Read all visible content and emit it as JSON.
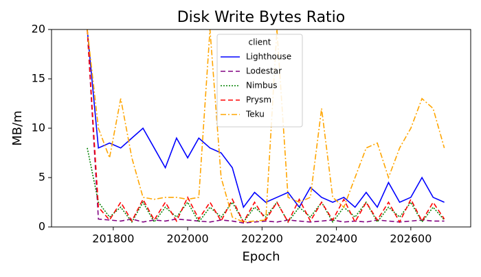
{
  "chart_data": {
    "type": "line",
    "title": "Disk Write Bytes Ratio",
    "x_label": "Epoch",
    "y_label": "MB/m",
    "legend_title": "client",
    "legend": "upper center",
    "x": [
      201730,
      201760,
      201790,
      201820,
      201850,
      201880,
      201910,
      201940,
      201970,
      202000,
      202030,
      202060,
      202090,
      202120,
      202150,
      202180,
      202210,
      202240,
      202270,
      202300,
      202330,
      202360,
      202390,
      202420,
      202450,
      202480,
      202510,
      202540,
      202570,
      202600,
      202630,
      202660,
      202690
    ],
    "series": [
      {
        "name": "Lighthouse",
        "color": "#0000ff",
        "style": "solid",
        "values": [
          20,
          8,
          8.5,
          8,
          9,
          10,
          8,
          6,
          9,
          7,
          9,
          8,
          7.5,
          6,
          2,
          3.5,
          2.5,
          3,
          3.5,
          2,
          4,
          3,
          2.5,
          3,
          2,
          3.5,
          2,
          4.5,
          2.5,
          3,
          5,
          3,
          2.5
        ]
      },
      {
        "name": "Lodestar",
        "color": "#800080",
        "style": "dashed",
        "values": [
          20,
          0.8,
          0.7,
          0.6,
          0.8,
          0.5,
          0.7,
          0.6,
          0.8,
          0.7,
          0.6,
          0.5,
          0.7,
          0.6,
          0.4,
          0.5,
          0.6,
          0.5,
          0.7,
          0.6,
          0.5,
          0.6,
          0.7,
          0.5,
          0.6,
          0.5,
          0.7,
          0.6,
          0.5,
          0.6,
          0.7,
          0.6,
          0.6
        ]
      },
      {
        "name": "Nimbus",
        "color": "#008000",
        "style": "dotted",
        "values": [
          8,
          2.5,
          1,
          2,
          0.5,
          2.5,
          0.5,
          2,
          1,
          2.5,
          0.5,
          2,
          1,
          2.5,
          0.5,
          2,
          1,
          2.5,
          0.5,
          2,
          1,
          2.5,
          0.5,
          2,
          1,
          2.5,
          0.5,
          2,
          1,
          2.5,
          0.5,
          2,
          0.7
        ]
      },
      {
        "name": "Prysm",
        "color": "#ff0000",
        "style": "dashed",
        "values": [
          20,
          2,
          0.7,
          2.5,
          0.6,
          2.8,
          0.7,
          2.5,
          0.6,
          3,
          0.8,
          2.5,
          0.6,
          2.8,
          0.5,
          2.5,
          0.7,
          2.5,
          0.5,
          2.8,
          0.6,
          2.5,
          0.7,
          2.8,
          0.5,
          2.5,
          0.7,
          2.5,
          0.5,
          2.8,
          0.6,
          2.5,
          0.8
        ]
      },
      {
        "name": "Teku",
        "color": "#ffa500",
        "style": "dashdot",
        "values": [
          20,
          10,
          7,
          13,
          7,
          3,
          2.8,
          3,
          3,
          2.8,
          3,
          20,
          5,
          1,
          0.5,
          0.6,
          0.7,
          20,
          3,
          2.5,
          3,
          12,
          3,
          2,
          5,
          8,
          8.5,
          5,
          8,
          10,
          13,
          12,
          8
        ]
      }
    ],
    "xlim": [
      201634,
      202761
    ],
    "ylim": [
      0,
      20
    ],
    "xticks": [
      201800,
      202000,
      202200,
      202400,
      202600
    ],
    "yticks": [
      0,
      5,
      10,
      15,
      20
    ]
  }
}
